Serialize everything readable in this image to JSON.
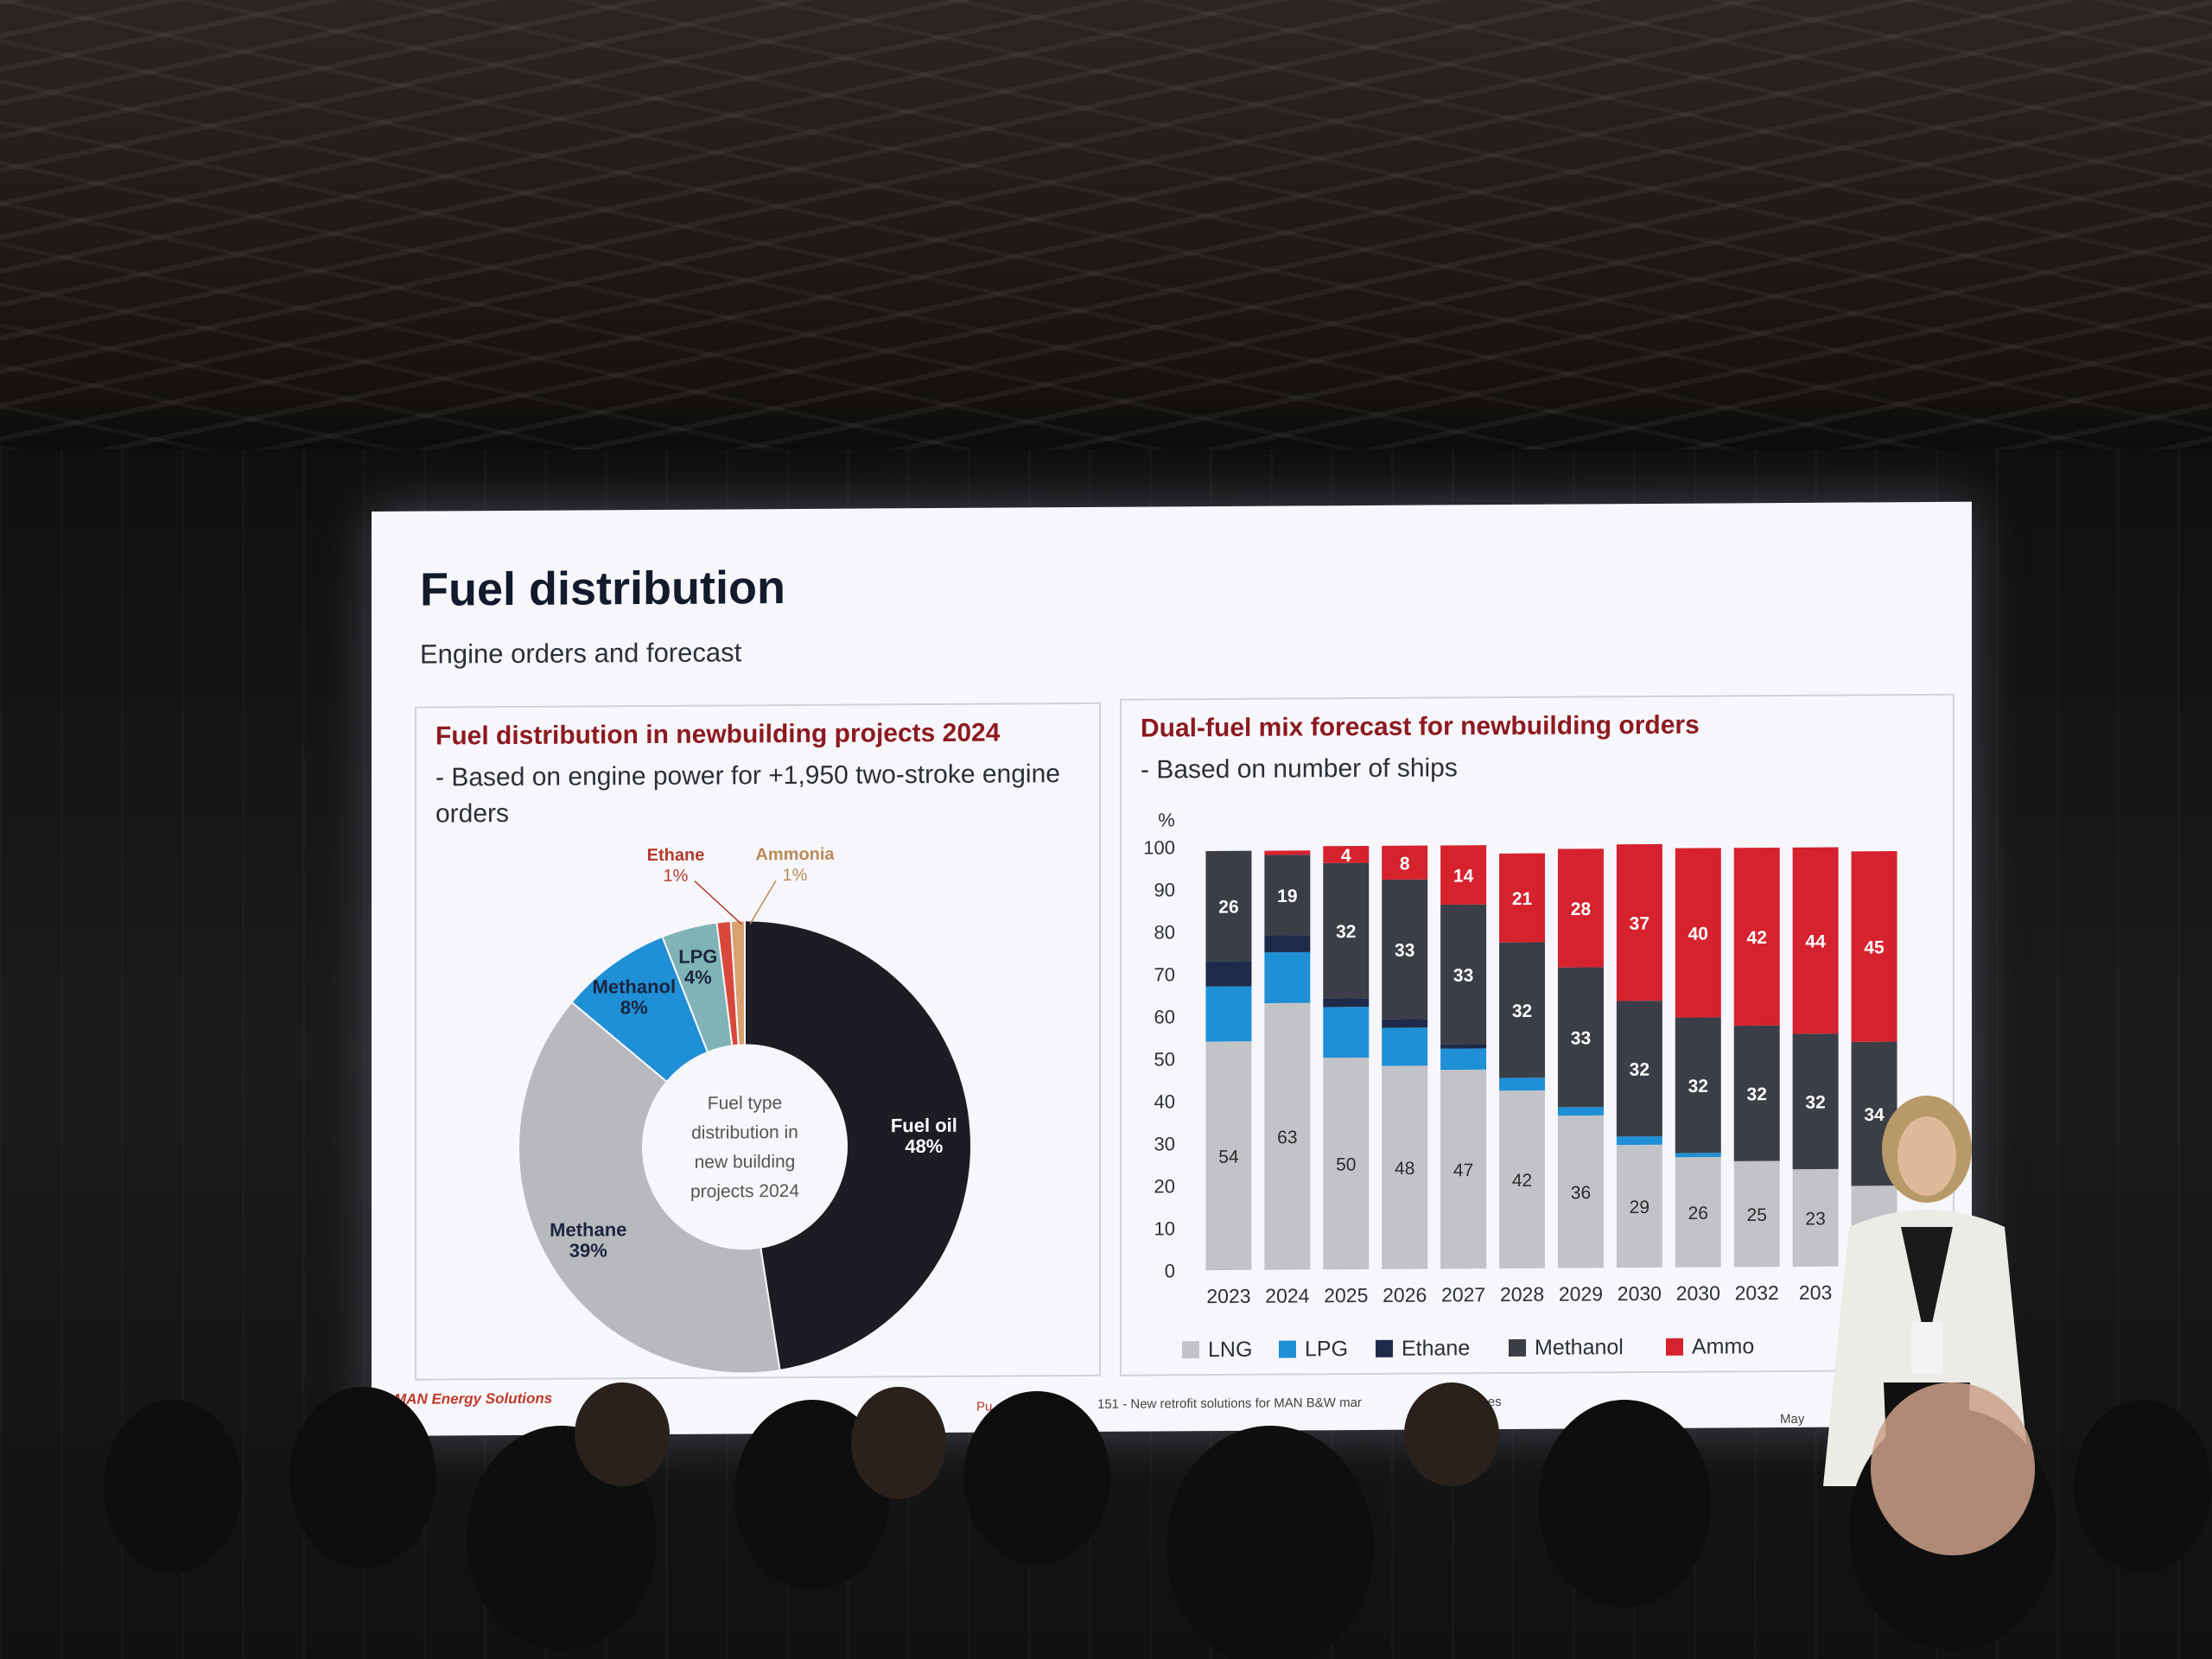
{
  "slide": {
    "title": "Fuel distribution",
    "subtitle": "Engine orders and forecast",
    "footer_logo": "MAN Energy Solutions",
    "footer_source_prefix": "Pu",
    "footer_source_mid": "151 - New retrofit solutions for MAN B&W mar",
    "footer_source_mid2": "stroke engines",
    "footer_date_partial": "May"
  },
  "left_panel": {
    "title": "Fuel distribution in newbuilding projects 2024",
    "note": "- Based on engine power for +1,950 two-stroke engine orders"
  },
  "right_panel": {
    "title": "Dual-fuel mix forecast for newbuilding orders",
    "note": "- Based on number of ships"
  },
  "chart_data": [
    {
      "type": "pie",
      "center_label": [
        "Fuel type",
        "distribution in",
        "new building",
        "projects 2024"
      ],
      "slices": [
        {
          "name": "Fuel oil",
          "value": 48,
          "label": "48%",
          "color": "#1c1c24"
        },
        {
          "name": "Methane",
          "value": 39,
          "label": "39%",
          "color": "#b7b9bd"
        },
        {
          "name": "Methanol",
          "value": 8,
          "label": "8%",
          "color": "#1f8fd6"
        },
        {
          "name": "LPG",
          "value": 4,
          "label": "4%",
          "color": "#7fb3b5"
        },
        {
          "name": "Ethane",
          "value": 1,
          "label": "1%",
          "color": "#d9473a"
        },
        {
          "name": "Ammonia",
          "value": 1,
          "label": "1%",
          "color": "#d9a070"
        }
      ]
    },
    {
      "type": "bar",
      "stacked": true,
      "ylabel": "%",
      "ylim": [
        0,
        100
      ],
      "yticks": [
        "0",
        "10",
        "20",
        "30",
        "40",
        "50",
        "60",
        "70",
        "80",
        "90",
        "100"
      ],
      "categories": [
        "2023",
        "2024",
        "2025",
        "2026",
        "2027",
        "2028",
        "2029",
        "2030",
        "2030",
        "2032",
        "203",
        "2034"
      ],
      "series": [
        {
          "name": "LNG",
          "color": "#c2c3c7",
          "label_color": "#2b2b2b",
          "values": [
            54,
            63,
            50,
            48,
            47,
            42,
            36,
            29,
            26,
            25,
            23,
            19
          ],
          "labels": [
            "54",
            "63",
            "50",
            "48",
            "47",
            "42",
            "36",
            "29",
            "26",
            "25",
            "23",
            ""
          ]
        },
        {
          "name": "LPG",
          "color": "#1f8fd6",
          "label_color": "#ffffff",
          "values": [
            13,
            12,
            12,
            9,
            5,
            3,
            2,
            2,
            1,
            0,
            0,
            0
          ],
          "labels": [
            "",
            "",
            "",
            "",
            "",
            "",
            "",
            "",
            "",
            "",
            "",
            ""
          ]
        },
        {
          "name": "Ethane",
          "color": "#1f2a4a",
          "label_color": "#ffffff",
          "values": [
            6,
            4,
            2,
            2,
            1,
            0,
            0,
            0,
            0,
            0,
            0,
            0
          ],
          "labels": [
            "",
            "",
            "",
            "",
            "",
            "",
            "",
            "",
            "",
            "",
            "",
            ""
          ]
        },
        {
          "name": "Methanol",
          "color": "#3b3e47",
          "label_color": "#ffffff",
          "values": [
            26,
            19,
            32,
            33,
            33,
            32,
            33,
            32,
            32,
            32,
            32,
            34
          ],
          "labels": [
            "26",
            "19",
            "32",
            "33",
            "33",
            "32",
            "33",
            "32",
            "32",
            "32",
            "32",
            "34"
          ]
        },
        {
          "name": "Ammonia",
          "color": "#d6222e",
          "label_color": "#ffffff",
          "values": [
            0,
            1,
            4,
            8,
            14,
            21,
            28,
            37,
            40,
            42,
            44,
            45
          ],
          "labels": [
            "",
            "",
            "4",
            "8",
            "14",
            "21",
            "28",
            "37",
            "40",
            "42",
            "44",
            "45"
          ]
        }
      ],
      "legend": {
        "placement": "bottom",
        "items": [
          "LNG",
          "LPG",
          "Ethane",
          "Methanol",
          "Ammo"
        ]
      }
    }
  ]
}
